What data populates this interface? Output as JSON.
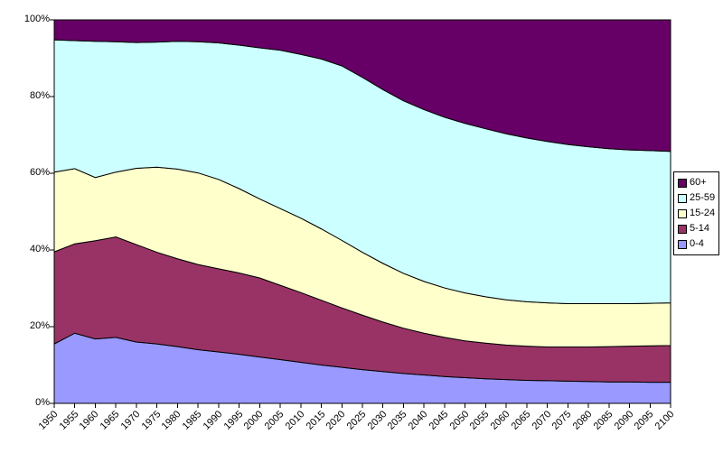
{
  "chart_data": {
    "type": "area",
    "stacked": true,
    "percent_stacked": true,
    "title": "",
    "xlabel": "",
    "ylabel": "",
    "grid": false,
    "background_color": "#FFFFFF",
    "plot_border_color": "#000000",
    "categories": [
      1950,
      1955,
      1960,
      1965,
      1970,
      1975,
      1980,
      1985,
      1990,
      1995,
      2000,
      2005,
      2010,
      2015,
      2020,
      2025,
      2030,
      2035,
      2040,
      2045,
      2050,
      2055,
      2060,
      2065,
      2070,
      2075,
      2080,
      2085,
      2090,
      2095,
      2100
    ],
    "series": [
      {
        "name": "0-4",
        "color": "#9999FF",
        "values": [
          15.5,
          18.3,
          16.8,
          17.2,
          16.0,
          15.5,
          14.8,
          14.0,
          13.4,
          12.8,
          12.1,
          11.4,
          10.7,
          10.0,
          9.4,
          8.8,
          8.3,
          7.8,
          7.4,
          7.0,
          6.7,
          6.4,
          6.2,
          6.0,
          5.9,
          5.8,
          5.7,
          5.6,
          5.6,
          5.5,
          5.5
        ]
      },
      {
        "name": "5-14",
        "color": "#993366",
        "values": [
          24.0,
          23.3,
          25.6,
          26.2,
          25.4,
          23.9,
          22.9,
          22.2,
          21.7,
          21.2,
          20.6,
          19.4,
          18.2,
          16.9,
          15.5,
          14.2,
          12.9,
          11.8,
          10.9,
          10.2,
          9.6,
          9.3,
          9.0,
          8.9,
          8.8,
          8.9,
          9.0,
          9.2,
          9.3,
          9.5,
          9.6
        ]
      },
      {
        "name": "15-24",
        "color": "#FFFFCC",
        "values": [
          20.8,
          19.6,
          16.5,
          16.9,
          19.9,
          22.2,
          23.4,
          23.9,
          23.3,
          22.0,
          20.6,
          20.0,
          19.4,
          18.6,
          17.6,
          16.4,
          15.3,
          14.3,
          13.5,
          12.9,
          12.5,
          12.1,
          11.8,
          11.6,
          11.5,
          11.3,
          11.3,
          11.2,
          11.1,
          11.1,
          11.1
        ]
      },
      {
        "name": "25-59",
        "color": "#CCFFFF",
        "values": [
          34.5,
          33.4,
          35.5,
          34.0,
          32.8,
          32.6,
          33.3,
          34.2,
          35.6,
          37.4,
          39.4,
          41.3,
          42.7,
          44.3,
          45.5,
          45.6,
          45.3,
          45.0,
          44.8,
          44.5,
          44.2,
          43.8,
          43.3,
          42.7,
          42.1,
          41.5,
          40.9,
          40.4,
          40.1,
          39.8,
          39.5
        ]
      },
      {
        "name": "60+",
        "color": "#660066",
        "values": [
          5.2,
          5.4,
          5.6,
          5.7,
          5.9,
          5.8,
          5.6,
          5.7,
          6.0,
          6.6,
          7.3,
          7.9,
          9.0,
          10.2,
          12.0,
          15.0,
          18.2,
          21.1,
          23.4,
          25.4,
          27.0,
          28.4,
          29.7,
          30.8,
          31.7,
          32.5,
          33.1,
          33.6,
          33.9,
          34.1,
          34.3
        ]
      }
    ],
    "y_axis": {
      "min": 0,
      "max": 100,
      "tick_interval": 20,
      "tick_labels": [
        "0%",
        "20%",
        "40%",
        "60%",
        "80%",
        "100%"
      ]
    },
    "x_axis": {
      "label_rotation": -45,
      "tick_labels": [
        "1950",
        "1955",
        "1960",
        "1965",
        "1970",
        "1975",
        "1980",
        "1985",
        "1990",
        "1995",
        "2000",
        "2005",
        "2010",
        "2015",
        "2020",
        "2025",
        "2030",
        "2035",
        "2040",
        "2045",
        "2050",
        "2055",
        "2060",
        "2065",
        "2070",
        "2075",
        "2080",
        "2085",
        "2090",
        "2095",
        "2100"
      ]
    },
    "legend": {
      "position": "right",
      "border_color": "#000000",
      "background": "#FFFFFF",
      "entries_top_to_bottom": [
        "60+",
        "25-59",
        "15-24",
        "5-14",
        "0-4"
      ]
    }
  }
}
